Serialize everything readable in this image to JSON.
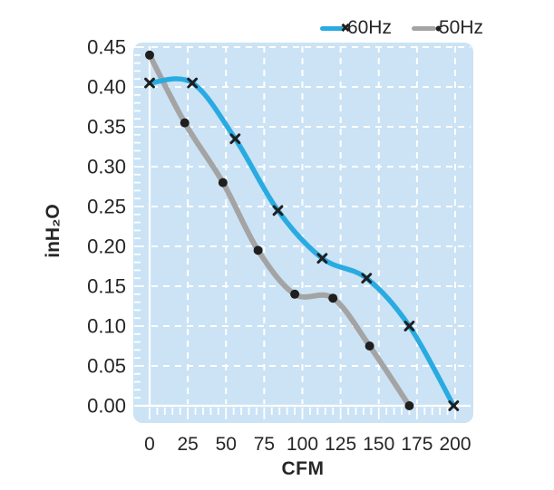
{
  "chart_data": {
    "type": "line",
    "title": "",
    "xlabel": "CFM",
    "ylabel": "inH₂O",
    "xlim": [
      0,
      200
    ],
    "ylim": [
      0,
      0.45
    ],
    "x_ticks": [
      "0",
      "25",
      "50",
      "75",
      "100",
      "125",
      "150",
      "175",
      "200"
    ],
    "y_ticks": [
      "0.00",
      "0.05",
      "0.10",
      "0.15",
      "0.20",
      "0.25",
      "0.30",
      "0.35",
      "0.40",
      "0.45"
    ],
    "x_minor_step": 5,
    "y_minor_step": 0.01,
    "grid": "white dashed on light-blue panel",
    "legend_position": "top-right",
    "series": [
      {
        "name": "60Hz",
        "color": "#29abe2",
        "marker": "x",
        "points": [
          [
            0,
            0.405
          ],
          [
            28,
            0.405
          ],
          [
            56,
            0.335
          ],
          [
            84,
            0.245
          ],
          [
            113,
            0.185
          ],
          [
            142,
            0.16
          ],
          [
            170,
            0.1
          ],
          [
            199,
            0.0
          ]
        ]
      },
      {
        "name": "50Hz",
        "color": "#a4a4a4",
        "marker": "circle",
        "points": [
          [
            0,
            0.44
          ],
          [
            23,
            0.355
          ],
          [
            48,
            0.28
          ],
          [
            71,
            0.195
          ],
          [
            95,
            0.14
          ],
          [
            120,
            0.135
          ],
          [
            144,
            0.075
          ],
          [
            170,
            0.0
          ]
        ]
      }
    ],
    "colors": {
      "plot_bg": "#cbe3f5",
      "grid": "#ffffff",
      "marker": "#1f1f1f",
      "text": "#262626"
    }
  }
}
